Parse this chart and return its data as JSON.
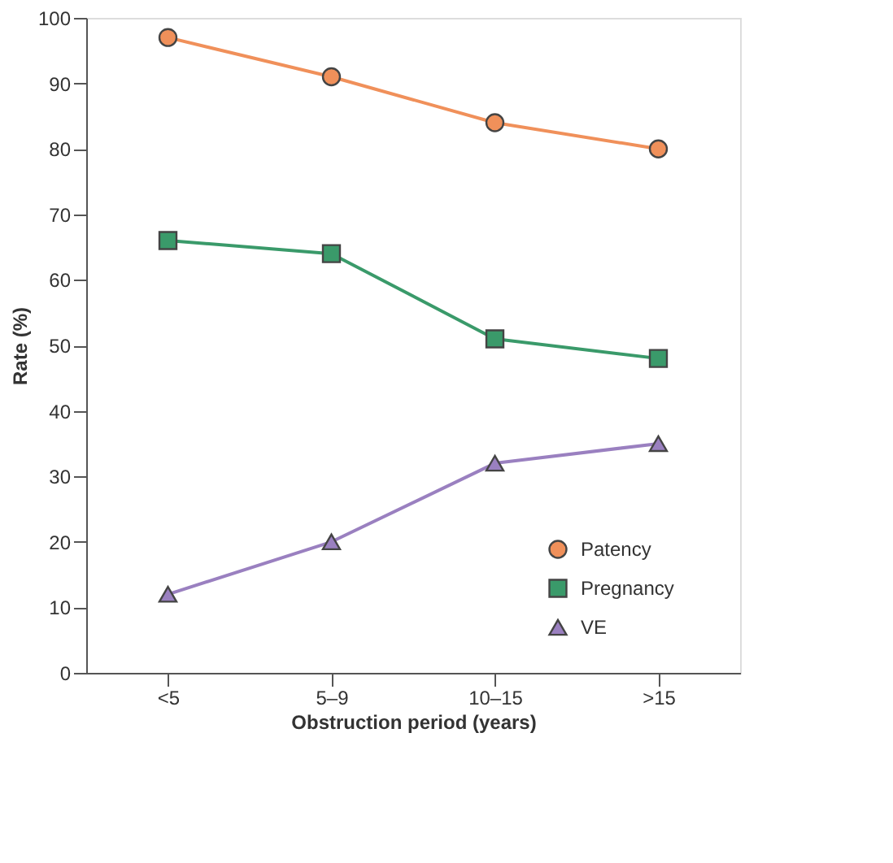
{
  "chart_data": {
    "type": "line",
    "xlabel": "Obstruction period (years)",
    "ylabel": "Rate (%)",
    "categories": [
      "<5",
      "5–9",
      "10–15",
      ">15"
    ],
    "series": [
      {
        "name": "Patency",
        "color": "#f0905a",
        "marker": "circle",
        "values": [
          97,
          91,
          84,
          80
        ]
      },
      {
        "name": "Pregnancy",
        "color": "#3a9a6a",
        "marker": "square",
        "values": [
          66,
          64,
          51,
          48
        ]
      },
      {
        "name": "VE",
        "color": "#9a80c0",
        "marker": "triangle",
        "values": [
          12,
          20,
          32,
          35
        ]
      }
    ],
    "ylim": [
      0,
      100
    ],
    "yticks": [
      0,
      10,
      20,
      30,
      40,
      50,
      60,
      70,
      80,
      90,
      100
    ],
    "grid": false,
    "legend": "bottom right",
    "line_style": "solid"
  }
}
